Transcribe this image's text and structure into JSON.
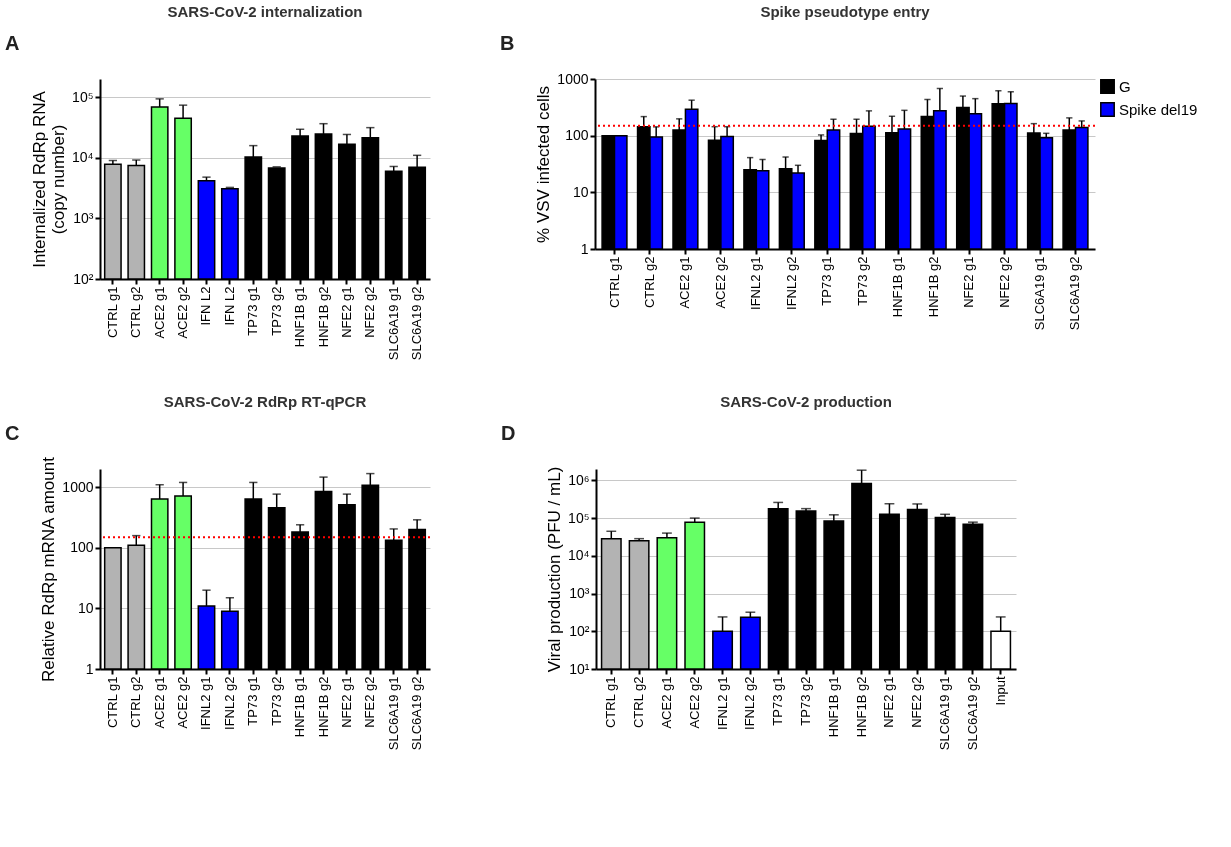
{
  "chart_data": [
    {
      "type": "bar",
      "title": "SARS-CoV-2 internalization",
      "ylabel": "Internalized RdRp RNA\n(copy number)",
      "annotations": [
        "A"
      ],
      "categories": [
        "CTRL g1",
        "CTRL g2",
        "ACE2 g1",
        "ACE2 g2",
        "IFN L2",
        "IFN L2",
        "TP73 g1",
        "TP73 g2",
        "HNF1B g1",
        "HNF1B g2",
        "NFE2 g1",
        "NFE2 g2",
        "SLC6A19 g1",
        "SLC6A19 g2"
      ],
      "values": [
        7800,
        7450,
        69000,
        45000,
        4200,
        3100,
        10300,
        6800,
        23000,
        24800,
        16800,
        21400,
        6000,
        7000
      ],
      "errors": [
        [
          7800,
          9000
        ],
        [
          7450,
          9200
        ],
        [
          69000,
          94000
        ],
        [
          45000,
          74000
        ],
        [
          4200,
          4800
        ],
        [
          3100,
          3250
        ],
        [
          10300,
          15900
        ],
        [
          6800,
          7100
        ],
        [
          23000,
          29600
        ],
        [
          24800,
          36600
        ],
        [
          16800,
          24300
        ],
        [
          21400,
          31500
        ],
        [
          6000,
          7200
        ],
        [
          7000,
          11000
        ]
      ],
      "colors": [
        "#b3b3b3",
        "#b3b3b3",
        "#66ff66",
        "#66ff66",
        "#0000ff",
        "#0000ff",
        "#000000",
        "#000000",
        "#000000",
        "#000000",
        "#000000",
        "#000000",
        "#000000",
        "#000000"
      ],
      "log": true,
      "ylim": [
        100,
        200000
      ],
      "yticks": [
        {
          "value": 100,
          "label": "10²"
        },
        {
          "value": 1000,
          "label": "10³"
        },
        {
          "value": 10000,
          "label": "10⁴"
        },
        {
          "value": 100000,
          "label": "10⁵"
        }
      ],
      "grid": "y"
    },
    {
      "type": "bar",
      "title": "Spike pseudotype entry",
      "ylabel": "% VSV infected cells",
      "annotations": [
        "B"
      ],
      "categories": [
        "CTRL g1",
        "CTRL g2",
        "ACE2 g1",
        "ACE2 g2",
        "IFNL2 g1",
        "IFNL2 g2",
        "TP73 g1",
        "TP73 g2",
        "HNF1B g1",
        "HNF1B g2",
        "NFE2 g1",
        "NFE2 g2",
        "SLC6A19 g1",
        "SLC6A19 g2"
      ],
      "series": [
        {
          "name": "G",
          "color": "#000000",
          "values": [
            100,
            143,
            126,
            83,
            25,
            26,
            82,
            109,
            113,
            217,
            314,
            365,
            111,
            126
          ],
          "errors": [
            null,
            [
              143,
              217
            ],
            [
              126,
              198
            ],
            [
              83,
              144
            ],
            [
              25,
              41
            ],
            [
              26,
              42
            ],
            [
              82,
              103
            ],
            [
              109,
              195
            ],
            [
              113,
              220
            ],
            [
              217,
              435
            ],
            [
              314,
              500
            ],
            [
              365,
              620
            ],
            [
              111,
              163
            ],
            [
              126,
              206
            ]
          ]
        },
        {
          "name": "Spike del19",
          "color": "#0000ff",
          "values": [
            100,
            95,
            293,
            97,
            24,
            22,
            126,
            147,
            131,
            274,
            243,
            370,
            92,
            139
          ],
          "errors": [
            null,
            [
              95,
              143
            ],
            [
              293,
              423
            ],
            [
              97,
              144
            ],
            [
              24,
              38
            ],
            [
              22,
              30
            ],
            [
              126,
              195
            ],
            [
              147,
              274
            ],
            [
              131,
              280
            ],
            [
              274,
              680
            ],
            [
              243,
              450
            ],
            [
              370,
              595
            ],
            [
              92,
              110
            ],
            [
              139,
              182
            ]
          ]
        }
      ],
      "log": true,
      "ylim": [
        1,
        1000
      ],
      "yticks": [
        1,
        10,
        100,
        1000
      ],
      "grid": "y",
      "legend": "top right",
      "ref_lines": [
        {
          "axis": "y",
          "value": 150,
          "color": "#ff0000",
          "line_style": "dotted"
        }
      ]
    },
    {
      "type": "bar",
      "title": "SARS-CoV-2 RdRp RT-qPCR",
      "ylabel": "Relative RdRp mRNA amount",
      "annotations": [
        "C"
      ],
      "categories": [
        "CTRL g1",
        "CTRL g2",
        "ACE2 g1",
        "ACE2 g2",
        "IFNL2 g1",
        "IFNL2 g2",
        "TP73 g1",
        "TP73 g2",
        "HNF1B g1",
        "HNF1B g2",
        "NFE2 g1",
        "NFE2 g2",
        "SLC6A19 g1",
        "SLC6A19 g2"
      ],
      "values": [
        100,
        110,
        640,
        720,
        11,
        9,
        640,
        460,
        182,
        850,
        515,
        1080,
        133,
        200
      ],
      "errors": [
        null,
        [
          110,
          159
        ],
        [
          640,
          1100
        ],
        [
          720,
          1200
        ],
        [
          11,
          20
        ],
        [
          9,
          15
        ],
        [
          640,
          1200
        ],
        [
          460,
          770
        ],
        [
          182,
          240
        ],
        [
          850,
          1470
        ],
        [
          515,
          770
        ],
        [
          1080,
          1680
        ],
        [
          133,
          205
        ],
        [
          200,
          290
        ]
      ],
      "colors": [
        "#b3b3b3",
        "#b3b3b3",
        "#66ff66",
        "#66ff66",
        "#0000ff",
        "#0000ff",
        "#000000",
        "#000000",
        "#000000",
        "#000000",
        "#000000",
        "#000000",
        "#000000",
        "#000000"
      ],
      "log": true,
      "ylim": [
        1,
        2000
      ],
      "yticks": [
        1,
        10,
        100,
        1000
      ],
      "grid": "y",
      "ref_lines": [
        {
          "axis": "y",
          "value": 150,
          "color": "#ff0000",
          "line_style": "dotted"
        }
      ]
    },
    {
      "type": "bar",
      "title": "SARS-CoV-2 production",
      "ylabel": "Viral production (PFU / mL)",
      "annotations": [
        "D"
      ],
      "categories": [
        "CTRL g1",
        "CTRL g2",
        "ACE2 g1",
        "ACE2 g2",
        "IFNL2 g1",
        "IFNL2 g2",
        "TP73 g1",
        "TP73 g2",
        "HNF1B g1",
        "HNF1B g2",
        "NFE2 g1",
        "NFE2 g2",
        "SLC6A19 g1",
        "SLC6A19 g2",
        "Input"
      ],
      "values": [
        28500,
        25000,
        30000,
        78000,
        100,
        235,
        178000,
        154000,
        84000,
        820000,
        126000,
        168000,
        104000,
        68500,
        100
      ],
      "errors": [
        [
          28500,
          44700
        ],
        [
          25000,
          28500
        ],
        [
          30000,
          40000
        ],
        [
          78000,
          100000
        ],
        [
          100,
          240
        ],
        [
          235,
          320
        ],
        [
          178000,
          260000
        ],
        [
          154000,
          178000
        ],
        [
          84000,
          122000
        ],
        [
          820000,
          1860000
        ],
        [
          126000,
          240000
        ],
        [
          168000,
          237000
        ],
        [
          104000,
          126000
        ],
        [
          68500,
          78000
        ],
        [
          100,
          240
        ]
      ],
      "colors": [
        "#b3b3b3",
        "#b3b3b3",
        "#66ff66",
        "#66ff66",
        "#0000ff",
        "#0000ff",
        "#000000",
        "#000000",
        "#000000",
        "#000000",
        "#000000",
        "#000000",
        "#000000",
        "#000000",
        "#ffffff"
      ],
      "log": true,
      "ylim": [
        10,
        2000000
      ],
      "yticks": [
        {
          "value": 10,
          "label": "10¹"
        },
        {
          "value": 100,
          "label": "10²"
        },
        {
          "value": 1000,
          "label": "10³"
        },
        {
          "value": 10000,
          "label": "10⁴"
        },
        {
          "value": 100000,
          "label": "10⁵"
        },
        {
          "value": 1000000,
          "label": "10⁶"
        }
      ],
      "grid": "y"
    }
  ]
}
